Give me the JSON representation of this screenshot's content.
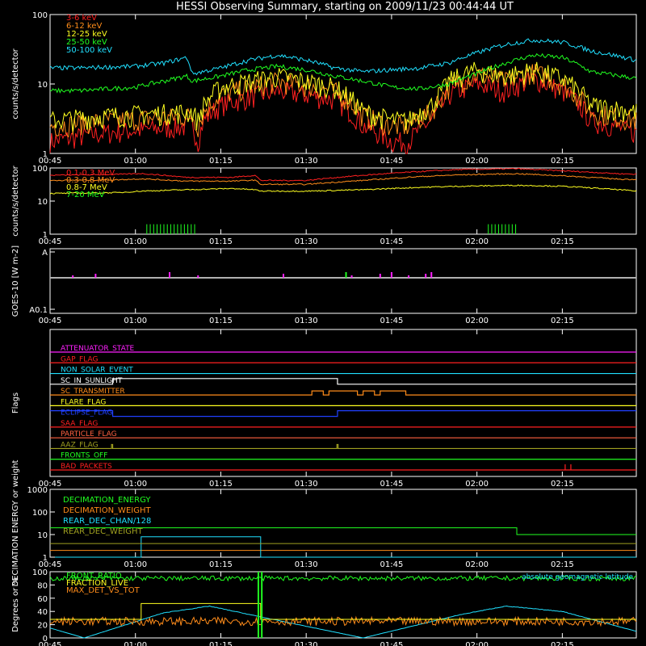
{
  "title": "HESSI Observing Summary, starting on 2009/11/23 00:44:44 UT",
  "time_ticks": [
    "00:45",
    "01:00",
    "01:15",
    "01:30",
    "01:45",
    "02:00",
    "02:15"
  ],
  "colors": {
    "red": "#ff2020",
    "orange": "#ff8c1a",
    "yellow": "#ffff20",
    "green": "#20ff20",
    "cyan": "#20e0ff",
    "magenta": "#ff20ff",
    "blue": "#2040ff",
    "olive": "#a0a020",
    "salmon": "#ff6040",
    "grey": "#b0b0b0",
    "axis": "#ffffff"
  },
  "chart_data": [
    {
      "type": "line",
      "ylabel": "counts/s/detector",
      "ytick_labels": [
        "1",
        "10",
        "100"
      ],
      "ylim": [
        1,
        100
      ],
      "log_y": true,
      "x_range_minutes": [
        0,
        103
      ],
      "legend": [
        "3-6 keV",
        "6-12 keV",
        "12-25 keV",
        "25-50 keV",
        "50-100 keV"
      ],
      "series": [
        {
          "name": "3-6 keV",
          "color": "red",
          "x": [
            0,
            10,
            25,
            26,
            27,
            30,
            40,
            50,
            55,
            60,
            63,
            67,
            69,
            70,
            75,
            80,
            85,
            90,
            95,
            103
          ],
          "y": [
            1.5,
            2,
            2.5,
            1.5,
            3,
            5,
            8,
            6,
            2.5,
            1.5,
            1.5,
            3,
            5,
            7,
            10,
            8,
            12,
            8,
            3,
            2
          ]
        },
        {
          "name": "6-12 keV",
          "color": "orange",
          "x": [
            0,
            10,
            25,
            26,
            27,
            30,
            40,
            50,
            55,
            60,
            63,
            67,
            69,
            70,
            75,
            80,
            85,
            90,
            95,
            103
          ],
          "y": [
            2.5,
            3,
            3.5,
            2.5,
            4,
            7,
            11,
            8,
            3.5,
            2.5,
            2.5,
            4,
            7,
            9,
            14,
            11,
            15,
            10,
            4,
            3
          ]
        },
        {
          "name": "12-25 keV",
          "color": "yellow",
          "x": [
            0,
            10,
            25,
            26,
            27,
            30,
            40,
            50,
            55,
            60,
            63,
            67,
            69,
            70,
            75,
            80,
            85,
            90,
            95,
            103
          ],
          "y": [
            3,
            3.5,
            4,
            3,
            5,
            9,
            13,
            9,
            4,
            3,
            3,
            5,
            8,
            11,
            16,
            13,
            16,
            12,
            5,
            4
          ]
        },
        {
          "name": "25-50 keV",
          "color": "green",
          "x": [
            0,
            5,
            10,
            15,
            20,
            24,
            25,
            30,
            35,
            40,
            45,
            50,
            55,
            60,
            65,
            70,
            75,
            80,
            85,
            90,
            95,
            103
          ],
          "y": [
            8,
            8,
            8.5,
            9,
            11,
            13,
            11,
            13,
            16,
            18,
            16,
            13,
            11,
            9,
            8.5,
            10,
            14,
            20,
            26,
            24,
            15,
            12
          ]
        },
        {
          "name": "50-100 keV",
          "color": "cyan",
          "x": [
            0,
            5,
            10,
            15,
            20,
            24,
            25,
            30,
            35,
            40,
            45,
            50,
            55,
            60,
            65,
            70,
            75,
            80,
            85,
            90,
            95,
            103
          ],
          "y": [
            17,
            17,
            17.5,
            18,
            20,
            24,
            14,
            17,
            22,
            26,
            22,
            17,
            15,
            16,
            17,
            20,
            28,
            37,
            43,
            40,
            30,
            22
          ]
        }
      ]
    },
    {
      "type": "line",
      "ylabel": "counts/s/detector",
      "ytick_labels": [
        "1",
        "10",
        "100"
      ],
      "ylim": [
        1,
        100
      ],
      "log_y": true,
      "legend": [
        "0.1-0.3 MeV",
        "0.3-0.8 MeV",
        "0.8-7 MeV",
        "7-20 MeV"
      ],
      "series": [
        {
          "name": "0.1-0.3 MeV",
          "color": "red",
          "x": [
            0,
            12,
            16,
            24,
            32,
            36,
            37,
            45,
            55,
            65,
            72,
            82,
            90,
            100,
            103
          ],
          "y": [
            60,
            64,
            68,
            52,
            52,
            60,
            42,
            42,
            60,
            78,
            90,
            95,
            82,
            67,
            65
          ]
        },
        {
          "name": "0.3-0.8 MeV",
          "color": "orange",
          "x": [
            0,
            12,
            16,
            24,
            32,
            36,
            37,
            45,
            55,
            65,
            72,
            82,
            90,
            100,
            103
          ],
          "y": [
            42,
            44,
            47,
            40,
            40,
            43,
            32,
            32,
            42,
            55,
            62,
            67,
            58,
            46,
            45
          ]
        },
        {
          "name": "0.8-7 MeV",
          "color": "yellow",
          "x": [
            0,
            12,
            16,
            24,
            32,
            36,
            37,
            45,
            55,
            65,
            72,
            82,
            90,
            100,
            103
          ],
          "y": [
            17,
            18,
            20,
            22,
            24,
            22,
            20,
            20,
            22,
            26,
            28,
            30,
            28,
            22,
            20
          ]
        },
        {
          "name": "7-20 MeV",
          "color": "green",
          "x": [
            0,
            103
          ],
          "y": [
            1,
            1
          ]
        }
      ]
    },
    {
      "type": "line",
      "ylabel": "GOES-10 [W m-2]",
      "ytick_labels": [
        "A",
        "A0.1"
      ],
      "series": [
        {
          "name": "GOES",
          "color": "grey",
          "x": [
            0,
            103
          ],
          "y": [
            0.62,
            0.62
          ]
        }
      ]
    },
    {
      "type": "table",
      "ylabel": "Flags",
      "flags": [
        {
          "name": "ATTENUATOR_STATE",
          "color": "magenta"
        },
        {
          "name": "GAP_FLAG",
          "color": "red"
        },
        {
          "name": "NON_SOLAR_EVENT",
          "color": "cyan"
        },
        {
          "name": "SC_IN_SUNLIGHT",
          "color": "axis"
        },
        {
          "name": "SC_TRANSMITTER",
          "color": "orange"
        },
        {
          "name": "FLARE_FLAG",
          "color": "yellow"
        },
        {
          "name": "ECLIPSE_FLAG",
          "color": "blue"
        },
        {
          "name": "SAA_FLAG",
          "color": "red"
        },
        {
          "name": "PARTICLE_FLAG",
          "color": "salmon"
        },
        {
          "name": "AAZ_FLAG",
          "color": "olive"
        },
        {
          "name": "FRONTS_OFF",
          "color": "green"
        },
        {
          "name": "BAD_PACKETS",
          "color": "red"
        }
      ]
    },
    {
      "type": "line",
      "ylabel": "DECIMATION ENERGY or weight",
      "ytick_labels": [
        "1",
        "10",
        "100",
        "1000"
      ],
      "ylim": [
        1,
        1000
      ],
      "log_y": true,
      "legend": [
        "DECIMATION_ENERGY",
        "DECIMATION_WEIGHT",
        "REAR_DEC_CHAN/128",
        "REAR_DEC_WEIGHT"
      ],
      "series": [
        {
          "name": "DECIMATION_ENERGY",
          "color": "green",
          "x": [
            0,
            82,
            82,
            103
          ],
          "y": [
            20,
            20,
            10,
            10
          ]
        },
        {
          "name": "DECIMATION_WEIGHT",
          "color": "orange",
          "x": [
            0,
            103
          ],
          "y": [
            2,
            2
          ]
        },
        {
          "name": "REAR_DEC_CHAN/128",
          "color": "cyan",
          "x": [
            0,
            16,
            16,
            37,
            37,
            103
          ],
          "y": [
            1,
            1,
            8,
            8,
            1,
            1
          ]
        },
        {
          "name": "REAR_DEC_WEIGHT",
          "color": "olive",
          "x": [
            0,
            103
          ],
          "y": [
            4,
            4
          ]
        }
      ]
    },
    {
      "type": "line",
      "ylabel": "Degrees or %",
      "ytick_labels": [
        "0",
        "20",
        "40",
        "60",
        "80",
        "100"
      ],
      "ylim": [
        0,
        100
      ],
      "legend": [
        "FRONT_RATIO",
        "FRACTION_LIVE",
        "MAX_DET_VS_TOT"
      ],
      "annotation": "absolute geomagnetic latitude",
      "series": [
        {
          "name": "FRONT_RATIO",
          "color": "green",
          "x": [
            0,
            103
          ],
          "y": [
            90,
            90
          ]
        },
        {
          "name": "FRACTION_LIVE",
          "color": "yellow",
          "x": [
            0,
            16,
            16,
            37,
            37,
            103
          ],
          "y": [
            28,
            28,
            52,
            52,
            28,
            28
          ]
        },
        {
          "name": "MAX_DET_VS_TOT",
          "color": "orange",
          "x": [
            0,
            103
          ],
          "y": [
            25,
            25
          ]
        },
        {
          "name": "absolute geomagnetic latitude",
          "color": "cyan",
          "x": [
            0,
            6,
            20,
            28,
            38,
            55,
            72,
            80,
            90,
            103
          ],
          "y": [
            15,
            0,
            38,
            48,
            30,
            0,
            35,
            48,
            40,
            10
          ]
        }
      ]
    }
  ]
}
